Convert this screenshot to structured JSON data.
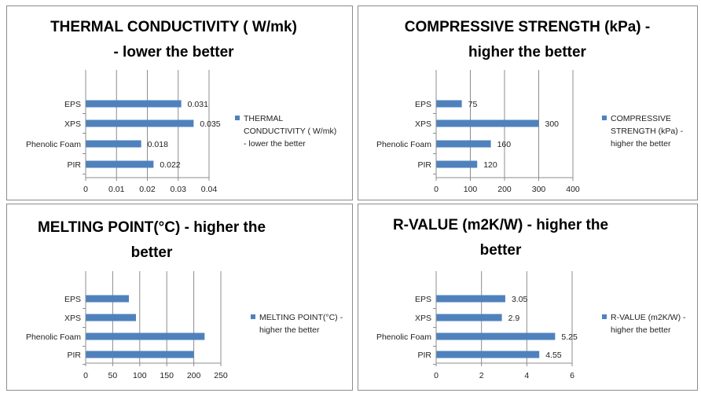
{
  "chart_data": [
    {
      "type": "bar",
      "orientation": "horizontal",
      "title": [
        "THERMAL CONDUCTIVITY ( W/mk)",
        "- lower the better"
      ],
      "categories": [
        "EPS",
        "XPS",
        "Phenolic Foam",
        "PIR"
      ],
      "series": [
        {
          "name": "THERMAL CONDUCTIVITY ( W/mk) - lower the better",
          "values": [
            0.031,
            0.035,
            0.018,
            0.022
          ],
          "labels": [
            "0.031",
            "0.035",
            "0.018",
            "0.022"
          ]
        }
      ],
      "legend_lines": [
        "THERMAL",
        "CONDUCTIVITY ( W/mk)",
        "- lower the better"
      ],
      "xlim": [
        0,
        0.04
      ],
      "xticks": [
        "0",
        "0.01",
        "0.02",
        "0.03",
        "0.04"
      ],
      "grid": true,
      "legend_position": "right",
      "color": "#4f81bd"
    },
    {
      "type": "bar",
      "orientation": "horizontal",
      "title": [
        "COMPRESSIVE STRENGTH (kPa) -",
        "higher the better"
      ],
      "categories": [
        "EPS",
        "XPS",
        "Phenolic Foam",
        "PIR"
      ],
      "series": [
        {
          "name": "COMPRESSIVE STRENGTH (kPa) - higher the better",
          "values": [
            75,
            300,
            160,
            120
          ],
          "labels": [
            "75",
            "300",
            "160",
            "120"
          ]
        }
      ],
      "legend_lines": [
        "COMPRESSIVE",
        "STRENGTH (kPa) -",
        "higher the better"
      ],
      "xlim": [
        0,
        400
      ],
      "xticks": [
        "0",
        "100",
        "200",
        "300",
        "400"
      ],
      "grid": true,
      "legend_position": "right",
      "color": "#4f81bd"
    },
    {
      "type": "bar",
      "orientation": "horizontal",
      "title": [
        "MELTING POINT(°C) - higher the",
        "better"
      ],
      "categories": [
        "EPS",
        "XPS",
        "Phenolic Foam",
        "PIR"
      ],
      "series": [
        {
          "name": "MELTING POINT(°C) - higher the better",
          "values": [
            80,
            93,
            220,
            200
          ],
          "labels": []
        }
      ],
      "legend_lines": [
        "MELTING POINT(°C) -",
        "higher the better"
      ],
      "xlim": [
        0,
        250
      ],
      "xticks": [
        "0",
        "50",
        "100",
        "150",
        "200",
        "250"
      ],
      "grid": true,
      "legend_position": "right",
      "color": "#4f81bd"
    },
    {
      "type": "bar",
      "orientation": "horizontal",
      "title": [
        "R-VALUE (m2K/W) - higher the",
        "better"
      ],
      "categories": [
        "EPS",
        "XPS",
        "Phenolic Foam",
        "PIR"
      ],
      "series": [
        {
          "name": "R-VALUE (m2K/W) - higher the better",
          "values": [
            3.05,
            2.9,
            5.25,
            4.55
          ],
          "labels": [
            "3.05",
            "2.9",
            "5.25",
            "4.55"
          ]
        }
      ],
      "legend_lines": [
        "R-VALUE (m2K/W) -",
        "higher the better"
      ],
      "xlim": [
        0,
        6
      ],
      "xticks": [
        "0",
        "2",
        "4",
        "6"
      ],
      "grid": true,
      "legend_position": "right",
      "color": "#4f81bd"
    }
  ]
}
